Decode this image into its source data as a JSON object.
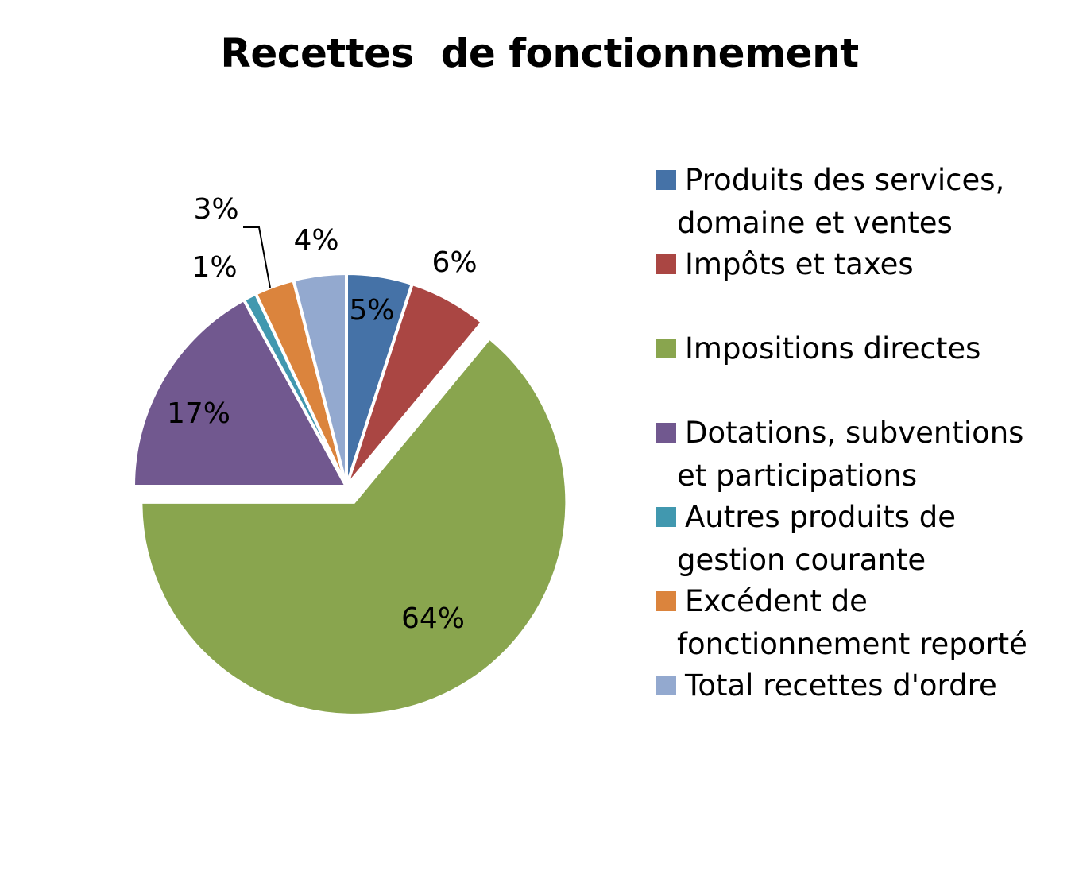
{
  "chart_data": {
    "type": "pie",
    "title": "Recettes  de fonctionnement",
    "categories": [
      "Produits des services, domaine et ventes",
      "Impôts et taxes",
      "Impositions directes",
      "Dotations, subventions et participations",
      "Autres produits de gestion courante",
      "Excédent de fonctionnement reporté",
      "Total recettes d'ordre"
    ],
    "values": [
      5,
      6,
      64,
      17,
      1,
      3,
      4
    ],
    "data_labels": [
      "5%",
      "6%",
      "64%",
      "17%",
      "1%",
      "3%",
      "4%"
    ],
    "colors": [
      "#4572a7",
      "#aa4643",
      "#89a54e",
      "#71588f",
      "#4198af",
      "#db843d",
      "#93a9cf"
    ],
    "exploded": [
      false,
      false,
      true,
      false,
      false,
      false,
      false
    ],
    "legend_position": "right"
  }
}
